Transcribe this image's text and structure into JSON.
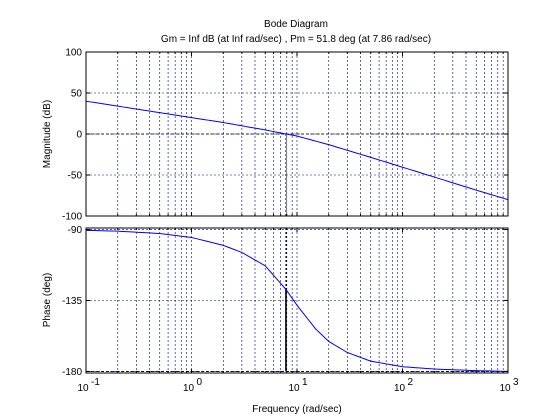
{
  "chart_data": {
    "type": "line",
    "title": "Bode Diagram",
    "subtitle": "Gm = Inf dB (at Inf rad/sec) ,  Pm = 51.8 deg (at 7.86 rad/sec)",
    "xlabel": "Frequency  (rad/sec)",
    "xscale": "log",
    "xlim": [
      0.1,
      1000
    ],
    "x_ticks": [
      0.1,
      1,
      10,
      100,
      1000
    ],
    "x_tick_labels": [
      {
        "base": "10",
        "exp": "-1"
      },
      {
        "base": "10",
        "exp": "0"
      },
      {
        "base": "10",
        "exp": "1"
      },
      {
        "base": "10",
        "exp": "2"
      },
      {
        "base": "10",
        "exp": "3"
      }
    ],
    "grid": true,
    "crossover_frequency": 7.86,
    "colors": {
      "series": "#0000ff",
      "grid": "#000080",
      "reference": "#000000"
    },
    "panels": [
      {
        "name": "magnitude",
        "ylabel": "Magnitude (dB)",
        "ylim": [
          -100,
          100
        ],
        "y_ticks": [
          100,
          50,
          0,
          -50,
          -100
        ],
        "y_tick_labels": [
          "100",
          "50",
          "0",
          "-50",
          "-100"
        ],
        "reference_y": 0,
        "series": [
          {
            "x": [
              0.1,
              0.2,
              0.5,
              1,
              2,
              3,
              5,
              7.86,
              10,
              20,
              50,
              100,
              200,
              500,
              1000
            ],
            "values": [
              40,
              34,
              26,
              20,
              14,
              10,
              5,
              0,
              -2.5,
              -13,
              -28.5,
              -40.5,
              -52.5,
              -68.5,
              -80
            ]
          }
        ]
      },
      {
        "name": "phase",
        "ylabel": "Phase (deg)",
        "ylim": [
          -181,
          -89
        ],
        "y_ticks": [
          -90,
          -135,
          -180
        ],
        "y_tick_labels": [
          "-90",
          "-135",
          "-180"
        ],
        "reference_y": -180,
        "series": [
          {
            "x": [
              0.1,
              0.2,
              0.5,
              1,
              2,
              3,
              5,
              7.86,
              10,
              15,
              20,
              30,
              50,
              100,
              200,
              500,
              1000
            ],
            "values": [
              -90.5,
              -91,
              -92.5,
              -95,
              -100,
              -104.5,
              -113,
              -128,
              -138,
              -153,
              -161,
              -168,
              -173.5,
              -177,
              -178.5,
              -179.5,
              -180
            ]
          }
        ]
      }
    ]
  }
}
